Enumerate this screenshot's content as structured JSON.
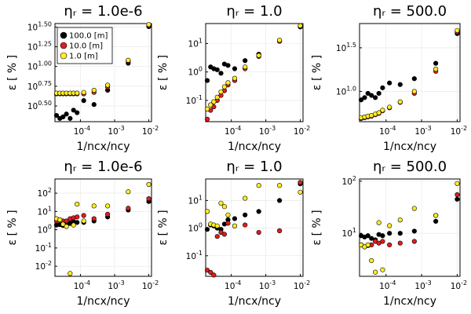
{
  "chart_data": {
    "type": "scatter",
    "x_scale": "log",
    "y_scale": "log",
    "series_colors": [
      "#000000",
      "#e01c1c",
      "#ffee22"
    ],
    "legend": {
      "placement": "top-left",
      "panel": 0,
      "entries": [
        "100.0 [m]",
        "10.0 [m]",
        "1.0 [m]"
      ]
    },
    "x": [
      2e-05,
      2.5e-05,
      3.1e-05,
      3.9e-05,
      5e-05,
      6.3e-05,
      8e-05,
      0.000125,
      0.00025,
      0.000625,
      0.0025,
      0.01
    ],
    "panels": [
      {
        "title": "ηᵣ = 1.0e-6",
        "xlabel": "1/ncx/ncy",
        "ylabel": "ε [ % ]",
        "xlim": [
          1.8e-05,
          0.012
        ],
        "ylim": [
          2.0,
          35.0
        ],
        "x_ticks": [
          "10^-4",
          "10^-3",
          "10^-2"
        ],
        "y_ticks": [
          "10^0.50",
          "10^0.75",
          "10^1.00",
          "10^1.25",
          "10^1.50"
        ],
        "series": [
          {
            "name": "100.0 [m]",
            "values": [
              2.4,
              2.2,
              2.3,
              2.5,
              2.2,
              2.8,
              2.6,
              3.7,
              3.3,
              5.0,
              11.0,
              32.0
            ]
          },
          {
            "name": "10.0 [m]",
            "values": [
              4.5,
              4.5,
              4.5,
              4.5,
              4.5,
              4.5,
              4.5,
              4.5,
              4.7,
              5.5,
              11.7,
              33.0
            ]
          },
          {
            "name": "1.0 [m]",
            "values": [
              4.6,
              4.6,
              4.6,
              4.6,
              4.6,
              4.6,
              4.6,
              4.7,
              5.0,
              5.8,
              12.0,
              34.0
            ]
          }
        ]
      },
      {
        "title": "ηᵣ = 1.0",
        "xlabel": "1/ncx/ncy",
        "ylabel": "ε [ % ]",
        "xlim": [
          1.8e-05,
          0.012
        ],
        "ylim": [
          0.018,
          50.0
        ],
        "x_ticks": [
          "10^-4",
          "10^-3",
          "10^-2"
        ],
        "y_ticks": [
          "10^-1",
          "10^0",
          "10^1"
        ],
        "series": [
          {
            "name": "100.0 [m]",
            "values": [
              0.5,
              1.5,
              1.3,
              1.2,
              0.9,
              1.9,
              1.7,
              1.3,
              2.5,
              4.2,
              12.0,
              38.0
            ]
          },
          {
            "name": "10.0 [m]",
            "values": [
              0.022,
              0.045,
              0.06,
              0.1,
              0.15,
              0.22,
              0.35,
              0.5,
              1.3,
              3.5,
              12.0,
              40.0
            ]
          },
          {
            "name": "1.0 [m]",
            "values": [
              0.05,
              0.07,
              0.09,
              0.13,
              0.2,
              0.3,
              0.42,
              0.6,
              1.5,
              3.8,
              13.0,
              42.0
            ]
          }
        ]
      },
      {
        "title": "ηᵣ = 500.0",
        "xlabel": "1/ncx/ncy",
        "ylabel": "ε [ % ]",
        "xlim": [
          1.8e-05,
          0.012
        ],
        "ylim": [
          4.5,
          60.0
        ],
        "x_ticks": [
          "10^-4",
          "10^-3",
          "10^-2"
        ],
        "y_ticks": [
          "10^1.0",
          "10^1.5"
        ],
        "series": [
          {
            "name": "100.0 [m]",
            "values": [
              8.0,
              8.5,
              9.5,
              9.0,
              8.5,
              9.5,
              11.0,
              12.5,
              12.0,
              14.0,
              21.0,
              46.0
            ]
          },
          {
            "name": "10.0 [m]",
            "values": [
              4.9,
              5.0,
              5.1,
              5.2,
              5.4,
              5.6,
              6.0,
              6.5,
              7.5,
              9.5,
              17.0,
              48.0
            ]
          },
          {
            "name": "1.0 [m]",
            "values": [
              5.0,
              5.1,
              5.2,
              5.3,
              5.5,
              5.7,
              6.1,
              6.6,
              7.6,
              10.0,
              18.0,
              50.0
            ]
          }
        ]
      },
      {
        "title": "ηᵣ = 1.0e-6",
        "xlabel": "1/ncx/ncy",
        "ylabel": "ε [ % ]",
        "xlim": [
          1.8e-05,
          0.012
        ],
        "ylim": [
          0.0028,
          600.0
        ],
        "x_ticks": [
          "10^-4",
          "10^-3",
          "10^-2"
        ],
        "y_ticks": [
          "10^-2",
          "10^-1",
          "10^0",
          "10^1",
          "10^2"
        ],
        "series": [
          {
            "name": "100.0 [m]",
            "values": [
              1.8,
              1.9,
              1.7,
              2.0,
              2.2,
              2.8,
              2.5,
              2.5,
              3.0,
              5.0,
              12.0,
              35.0
            ]
          },
          {
            "name": "10.0 [m]",
            "values": [
              3.0,
              3.5,
              3.0,
              3.0,
              4.0,
              4.5,
              5.0,
              6.0,
              4.0,
              7.0,
              15.0,
              50.0
            ]
          },
          {
            "name": "1.0 [m]",
            "values": [
              4.0,
              3.5,
              2.0,
              1.5,
              0.004,
              1.8,
              25.0,
              3.0,
              20.0,
              20.0,
              120.0,
              300.0
            ]
          }
        ]
      },
      {
        "title": "ηᵣ = 1.0",
        "xlabel": "1/ncx/ncy",
        "ylabel": "ε [ % ]",
        "xlim": [
          1.8e-05,
          0.012
        ],
        "ylim": [
          0.018,
          60.0
        ],
        "x_ticks": [
          "10^-4",
          "10^-3",
          "10^-2"
        ],
        "y_ticks": [
          "10^-1",
          "10^0",
          "10^1"
        ],
        "series": [
          {
            "name": "100.0 [m]",
            "values": [
              0.9,
              1.3,
              1.2,
              1.0,
              0.9,
              1.4,
              2.0,
              2.2,
              3.0,
              4.0,
              10.0,
              40.0
            ]
          },
          {
            "name": "10.0 [m]",
            "values": [
              0.03,
              0.025,
              0.02,
              0.5,
              0.7,
              0.6,
              1.5,
              1.2,
              1.3,
              0.7,
              0.8,
              45.0
            ]
          },
          {
            "name": "1.0 [m]",
            "values": [
              4.0,
              1.4,
              1.3,
              1.2,
              8.0,
              6.0,
              3.0,
              1.2,
              12.0,
              35.0,
              35.0,
              20.0
            ]
          }
        ]
      },
      {
        "title": "ηᵣ = 500.0",
        "xlabel": "1/ncx/ncy",
        "ylabel": "ε [ % ]",
        "xlim": [
          1.8e-05,
          0.012
        ],
        "ylim": [
          1.5,
          110.0
        ],
        "x_ticks": [
          "10^-4",
          "10^-3",
          "10^-2"
        ],
        "y_ticks": [
          "10^1",
          "10^2"
        ],
        "series": [
          {
            "name": "100.0 [m]",
            "values": [
              9.0,
              8.5,
              9.0,
              8.0,
              7.5,
              9.5,
              9.0,
              10.0,
              10.0,
              11.0,
              17.0,
              45.0
            ]
          },
          {
            "name": "10.0 [m]",
            "values": [
              6.0,
              5.5,
              5.8,
              6.0,
              7.0,
              6.5,
              7.0,
              6.0,
              6.5,
              7.0,
              22.0,
              55.0
            ]
          },
          {
            "name": "1.0 [m]",
            "values": [
              6.0,
              5.5,
              6.0,
              3.0,
              1.8,
              16.0,
              2.0,
              14.0,
              18.0,
              30.0,
              22.0,
              90.0
            ]
          }
        ]
      }
    ]
  }
}
